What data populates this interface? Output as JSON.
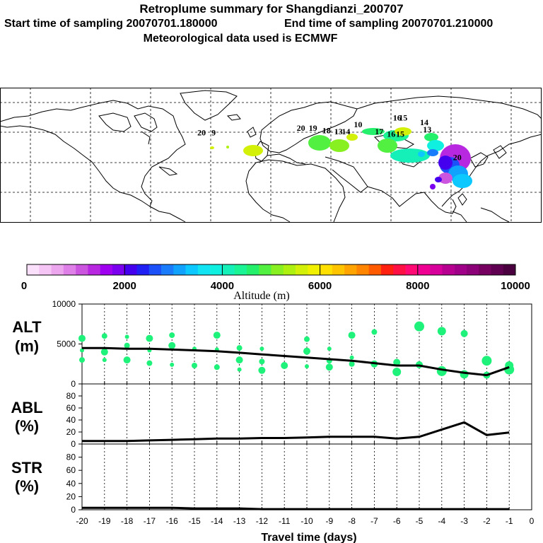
{
  "header": {
    "title": "Retroplume summary for Shangdianzi_200707",
    "start_label": "Start time of sampling 20070701.180000",
    "end_label": "End time of sampling 20070701.210000",
    "met_label": "Meteorological data used is ECMWF"
  },
  "map": {
    "plume_day_labels": [
      {
        "text": "20",
        "lon": 20,
        "lat": 53
      },
      {
        "text": "19",
        "lon": 28,
        "lat": 53
      },
      {
        "text": "18",
        "lon": 37,
        "lat": 51
      },
      {
        "text": "13",
        "lon": 45,
        "lat": 50
      },
      {
        "text": "14",
        "lon": 50,
        "lat": 50
      },
      {
        "text": "10",
        "lon": 58,
        "lat": 56
      },
      {
        "text": "17",
        "lon": 72,
        "lat": 50
      },
      {
        "text": "16",
        "lon": 80,
        "lat": 48
      },
      {
        "text": "15",
        "lon": 86,
        "lat": 48
      },
      {
        "text": "13",
        "lon": 104,
        "lat": 52
      },
      {
        "text": "14",
        "lon": 102,
        "lat": 58
      },
      {
        "text": "16",
        "lon": 84,
        "lat": 62
      },
      {
        "text": "15",
        "lon": 88,
        "lat": 62
      },
      {
        "text": "20",
        "lon": 124,
        "lat": 28
      },
      {
        "text": "20",
        "lon": -46,
        "lat": 49
      },
      {
        "text": "9",
        "lon": -38,
        "lat": 49
      }
    ]
  },
  "colorbar": {
    "label": "Altitude (m)",
    "tick_labels": [
      "0",
      "2000",
      "4000",
      "6000",
      "8000",
      "10000"
    ],
    "colors": [
      "#fbe0fb",
      "#f5c5f5",
      "#eba6ee",
      "#df80e8",
      "#cc55e0",
      "#b728e0",
      "#a000f0",
      "#7c00f0",
      "#4400ee",
      "#2020f4",
      "#1c50f8",
      "#1a7cfa",
      "#10a2fc",
      "#0cc8fe",
      "#12e4f4",
      "#10f0e0",
      "#14f0b8",
      "#1af494",
      "#24f06c",
      "#52f040",
      "#88f020",
      "#aef010",
      "#d2f008",
      "#f0f000",
      "#ffe000",
      "#ffc400",
      "#ffa400",
      "#ff8400",
      "#ff5a00",
      "#ff2010",
      "#ff1044",
      "#ff0a74",
      "#f00092",
      "#d8009a",
      "#b80090",
      "#a00088",
      "#8c0078",
      "#760060",
      "#600050",
      "#4a003e"
    ]
  },
  "chart_data": [
    {
      "type": "line",
      "name": "ALT",
      "ylabel": "ALT (m)",
      "xlabel": "Travel time (days)",
      "x": [
        -20,
        -19,
        -18,
        -17,
        -16,
        -15,
        -14,
        -13,
        -12,
        -11,
        -10,
        -9,
        -8,
        -7,
        -6,
        -5,
        -4,
        -3,
        -2,
        -1
      ],
      "values": [
        4500,
        4500,
        4400,
        4400,
        4300,
        4200,
        4100,
        3900,
        3700,
        3500,
        3300,
        3100,
        2900,
        2600,
        2300,
        2300,
        1800,
        1400,
        1100,
        2100
      ],
      "ylim": [
        0,
        10000
      ],
      "yticks": [
        "0",
        "5000",
        "10000"
      ],
      "points": [
        {
          "x": -20,
          "ys": [
            5700,
            4200,
            3000
          ]
        },
        {
          "x": -19,
          "ys": [
            6000,
            4000,
            3000
          ]
        },
        {
          "x": -18,
          "ys": [
            5900,
            4800,
            3000
          ]
        },
        {
          "x": -17,
          "ys": [
            5700,
            4200,
            2600
          ]
        },
        {
          "x": -16,
          "ys": [
            6100,
            4800,
            2400
          ]
        },
        {
          "x": -15,
          "ys": [
            4400,
            2300
          ]
        },
        {
          "x": -14,
          "ys": [
            6100,
            4300,
            2100
          ]
        },
        {
          "x": -13,
          "ys": [
            4500,
            3000,
            1800
          ]
        },
        {
          "x": -12,
          "ys": [
            4400,
            2800,
            1700
          ]
        },
        {
          "x": -11,
          "ys": [
            2300
          ]
        },
        {
          "x": -10,
          "ys": [
            5600,
            4100,
            2200
          ]
        },
        {
          "x": -9,
          "ys": [
            4400,
            2900,
            2100
          ]
        },
        {
          "x": -8,
          "ys": [
            6100,
            3300,
            2500
          ]
        },
        {
          "x": -7,
          "ys": [
            6500,
            2500
          ]
        },
        {
          "x": -6,
          "ys": [
            2700,
            1500
          ]
        },
        {
          "x": -5,
          "ys": [
            7200,
            2400
          ]
        },
        {
          "x": -4,
          "ys": [
            6600,
            1600
          ]
        },
        {
          "x": -3,
          "ys": [
            6300,
            1200
          ]
        },
        {
          "x": -2,
          "ys": [
            2900,
            1100
          ]
        },
        {
          "x": -1,
          "ys": [
            2300,
            1800
          ]
        }
      ]
    },
    {
      "type": "line",
      "name": "ABL",
      "ylabel": "ABL (%)",
      "x": [
        -20,
        -19,
        -18,
        -17,
        -16,
        -15,
        -14,
        -13,
        -12,
        -11,
        -10,
        -9,
        -8,
        -7,
        -6,
        -5,
        -4,
        -3,
        -2,
        -1
      ],
      "values": [
        5,
        5,
        5,
        6,
        7,
        8,
        9,
        9,
        10,
        10,
        11,
        12,
        12,
        12,
        9,
        12,
        24,
        36,
        15,
        19
      ],
      "ylim": [
        0,
        100
      ],
      "yticks": [
        "0",
        "20",
        "40",
        "60",
        "80"
      ]
    },
    {
      "type": "line",
      "name": "STR",
      "ylabel": "STR (%)",
      "x": [
        -20,
        -19,
        -18,
        -17,
        -16,
        -15,
        -14,
        -13,
        -12,
        -11,
        -10,
        -9,
        -8,
        -7,
        -6,
        -5,
        -4,
        -3,
        -2,
        -1
      ],
      "values": [
        3,
        3,
        3,
        3,
        3,
        2,
        2,
        2,
        1,
        1,
        1,
        1,
        1,
        1,
        1,
        1,
        1,
        1,
        1,
        1
      ],
      "ylim": [
        0,
        100
      ],
      "yticks": [
        "0",
        "20",
        "40",
        "60",
        "80"
      ],
      "xticks": [
        "-20",
        "-19",
        "-18",
        "-17",
        "-16",
        "-15",
        "-14",
        "-13",
        "-12",
        "-11",
        "-10",
        "-9",
        "-8",
        "-7",
        "-6",
        "-5",
        "-4",
        "-3",
        "-2",
        "-1",
        "0"
      ]
    }
  ],
  "labels": {
    "alt_1": "ALT",
    "alt_2": "(m)",
    "abl_1": "ABL",
    "abl_2": "(%)",
    "str_1": "STR",
    "str_2": "(%)",
    "xlabel": "Travel time (days)"
  }
}
